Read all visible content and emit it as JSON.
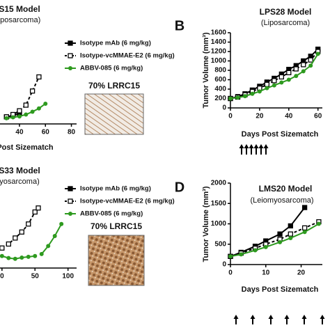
{
  "chart_data": [
    {
      "type": "line",
      "title": "S15 Model",
      "subtitle": "iposarcoma)",
      "x_label": "Post Sizematch",
      "annotation": "70% LRRC15",
      "xlim": [
        25,
        84
      ],
      "ylim": [
        0,
        1600
      ],
      "xticks": [
        40,
        60,
        80
      ],
      "x": [
        30,
        35,
        40,
        45,
        50,
        55,
        60
      ],
      "series": [
        {
          "name": "Isotype mAb (6 mg/kg)",
          "color": "#000000",
          "marker": "square-filled",
          "dash": false,
          "values": [
            150,
            180,
            220,
            null,
            null,
            null,
            null
          ]
        },
        {
          "name": "Isotype-vcMMAE-E2 (6 mg/kg)",
          "color": "#000000",
          "marker": "square-open",
          "dash": true,
          "values": [
            150,
            200,
            280,
            400,
            700,
            1000,
            null
          ]
        },
        {
          "name": "ABBV-085 (6 mg/kg)",
          "color": "#2e9a1f",
          "marker": "circle",
          "dash": false,
          "values": [
            120,
            140,
            160,
            200,
            260,
            330,
            430
          ]
        }
      ]
    },
    {
      "type": "line",
      "panel_label": "B",
      "title": "LPS28 Model",
      "subtitle": "(Liposarcoma)",
      "x_label": "Days Post Sizematch",
      "y_label": "Tumor Volume (mm³)",
      "xlim": [
        0,
        63
      ],
      "ylim": [
        0,
        1600
      ],
      "xticks": [
        0,
        20,
        40,
        60
      ],
      "yticks": [
        0,
        200,
        400,
        600,
        800,
        1000,
        1200,
        1400,
        1600
      ],
      "x": [
        0,
        5,
        10,
        15,
        20,
        25,
        30,
        35,
        40,
        45,
        50,
        55,
        60
      ],
      "series": [
        {
          "name": "Isotype mAb (6 mg/kg)",
          "color": "#000000",
          "marker": "square-filled",
          "dash": false,
          "values": [
            200,
            240,
            300,
            380,
            460,
            550,
            630,
            720,
            820,
            900,
            1000,
            1100,
            1250
          ]
        },
        {
          "name": "Isotype-vcMMAE-E2 (6 mg/kg)",
          "color": "#000000",
          "marker": "square-open",
          "dash": true,
          "values": [
            200,
            230,
            280,
            350,
            420,
            500,
            580,
            660,
            750,
            830,
            920,
            1020,
            1200
          ]
        },
        {
          "name": "ABBV-085 (6 mg/kg)",
          "color": "#2e9a1f",
          "marker": "circle",
          "dash": false,
          "values": [
            200,
            220,
            250,
            300,
            350,
            420,
            480,
            540,
            600,
            680,
            780,
            900,
            1150
          ]
        }
      ]
    },
    {
      "type": "line",
      "title": "S33 Model",
      "subtitle": "yosarcoma)",
      "annotation": "70% LRRC15",
      "xlim": [
        -3,
        113
      ],
      "ylim": [
        0,
        2000
      ],
      "xticks": [
        0,
        50,
        100
      ],
      "x": [
        0,
        10,
        20,
        30,
        40,
        50,
        55,
        60,
        70,
        80,
        90
      ],
      "series": [
        {
          "name": "Isotype mAb (6 mg/kg)",
          "color": "#000000",
          "marker": "square-filled",
          "dash": false,
          "values": [
            null,
            null,
            null,
            null,
            null,
            null,
            null,
            null,
            null,
            null,
            null
          ]
        },
        {
          "name": "Isotype-vcMMAE-E2 (6 mg/kg)",
          "color": "#000000",
          "marker": "square-open",
          "dash": true,
          "values": [
            500,
            600,
            750,
            900,
            1100,
            1400,
            1500,
            null,
            null,
            null,
            null
          ]
        },
        {
          "name": "ABBV-085 (6 mg/kg)",
          "color": "#2e9a1f",
          "marker": "circle",
          "dash": false,
          "values": [
            300,
            250,
            230,
            260,
            280,
            300,
            null,
            350,
            550,
            800,
            1100
          ]
        }
      ]
    },
    {
      "type": "line",
      "panel_label": "D",
      "title": "LMS20 Model",
      "subtitle": "(Leiomyosarcoma)",
      "x_label": "Days Post Sizematch",
      "y_label": "Tumor Volume (mm³)",
      "xlim": [
        0,
        26
      ],
      "ylim": [
        0,
        2000
      ],
      "xticks": [
        0,
        10,
        20
      ],
      "yticks": [
        0,
        500,
        1000,
        1500,
        2000
      ],
      "x": [
        0,
        3,
        7,
        10,
        14,
        17,
        21,
        25
      ],
      "series": [
        {
          "name": "Isotype mAb (6 mg/kg)",
          "color": "#000000",
          "marker": "square-filled",
          "dash": false,
          "values": [
            200,
            300,
            450,
            580,
            750,
            950,
            1400,
            null
          ]
        },
        {
          "name": "Isotype-vcMMAE-E2 (6 mg/kg)",
          "color": "#000000",
          "marker": "square-open",
          "dash": true,
          "values": [
            200,
            280,
            400,
            500,
            620,
            750,
            900,
            1050
          ]
        },
        {
          "name": "ABBV-085 (6 mg/kg)",
          "color": "#2e9a1f",
          "marker": "circle",
          "dash": false,
          "values": [
            200,
            250,
            350,
            430,
            550,
            650,
            800,
            1000
          ]
        }
      ]
    }
  ]
}
